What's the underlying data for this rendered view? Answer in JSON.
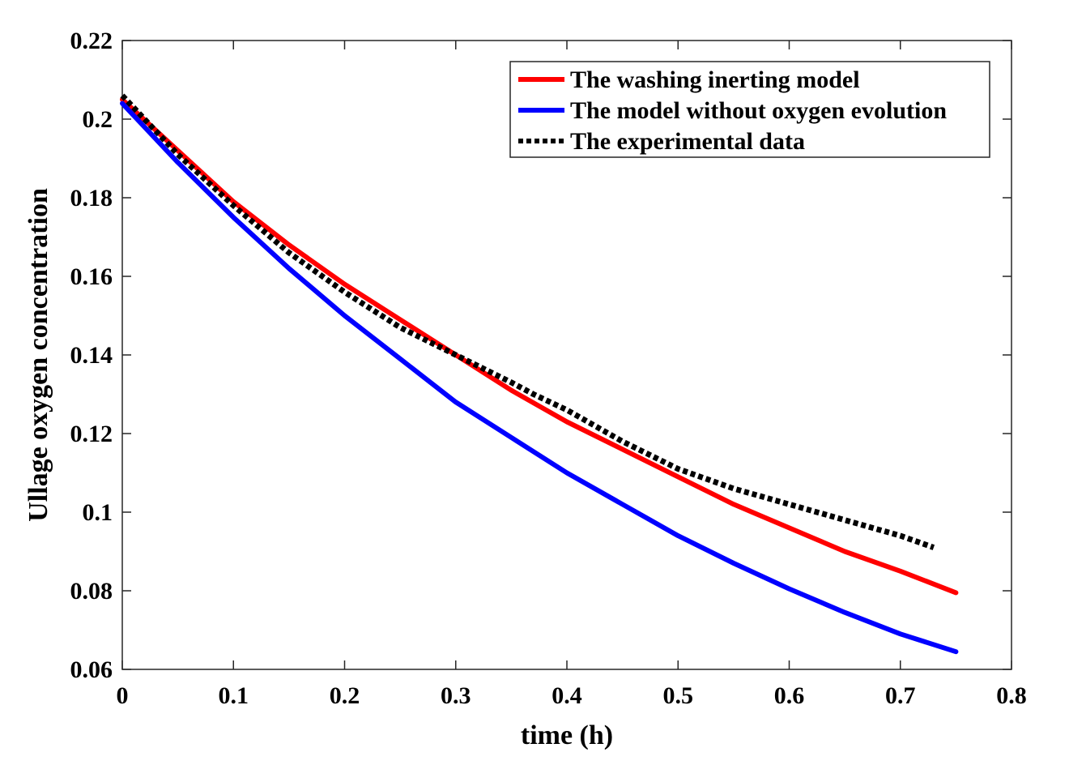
{
  "chart_data": {
    "type": "line",
    "xlabel": "time (h)",
    "ylabel": "Ullage oxygen concentration",
    "xlim": [
      0,
      0.8
    ],
    "ylim": [
      0.06,
      0.22
    ],
    "xticks": [
      0,
      0.1,
      0.2,
      0.3,
      0.4,
      0.5,
      0.6,
      0.7,
      0.8
    ],
    "xtick_labels": [
      "0",
      "0.1",
      "0.2",
      "0.3",
      "0.4",
      "0.5",
      "0.6",
      "0.7",
      "0.8"
    ],
    "yticks": [
      0.06,
      0.08,
      0.1,
      0.12,
      0.14,
      0.16,
      0.18,
      0.2,
      0.22
    ],
    "ytick_labels": [
      "0.06",
      "0.08",
      "0.1",
      "0.12",
      "0.14",
      "0.16",
      "0.18",
      "0.2",
      "0.22"
    ],
    "grid": false,
    "legend_position": "top-right",
    "series": [
      {
        "name": "The washing inerting model",
        "color": "#ff0000",
        "style": "solid",
        "x": [
          0,
          0.05,
          0.1,
          0.15,
          0.2,
          0.25,
          0.3,
          0.35,
          0.4,
          0.45,
          0.5,
          0.55,
          0.6,
          0.65,
          0.7,
          0.75
        ],
        "y": [
          0.205,
          0.192,
          0.179,
          0.168,
          0.158,
          0.149,
          0.14,
          0.131,
          0.123,
          0.116,
          0.109,
          0.102,
          0.096,
          0.09,
          0.085,
          0.0795
        ]
      },
      {
        "name": "The model without oxygen evolution",
        "color": "#0000ff",
        "style": "solid",
        "x": [
          0,
          0.05,
          0.1,
          0.15,
          0.2,
          0.25,
          0.3,
          0.35,
          0.4,
          0.45,
          0.5,
          0.55,
          0.6,
          0.65,
          0.7,
          0.75
        ],
        "y": [
          0.204,
          0.189,
          0.175,
          0.162,
          0.15,
          0.139,
          0.128,
          0.119,
          0.11,
          0.102,
          0.094,
          0.087,
          0.0805,
          0.0745,
          0.069,
          0.0645
        ]
      },
      {
        "name": "The experimental data",
        "color": "#000000",
        "style": "dotted",
        "x": [
          0,
          0.05,
          0.1,
          0.15,
          0.2,
          0.25,
          0.3,
          0.35,
          0.37,
          0.4,
          0.45,
          0.5,
          0.55,
          0.6,
          0.65,
          0.7,
          0.73
        ],
        "y": [
          0.206,
          0.191,
          0.178,
          0.166,
          0.156,
          0.147,
          0.14,
          0.133,
          0.13,
          0.126,
          0.118,
          0.111,
          0.106,
          0.102,
          0.098,
          0.094,
          0.091
        ]
      }
    ]
  }
}
